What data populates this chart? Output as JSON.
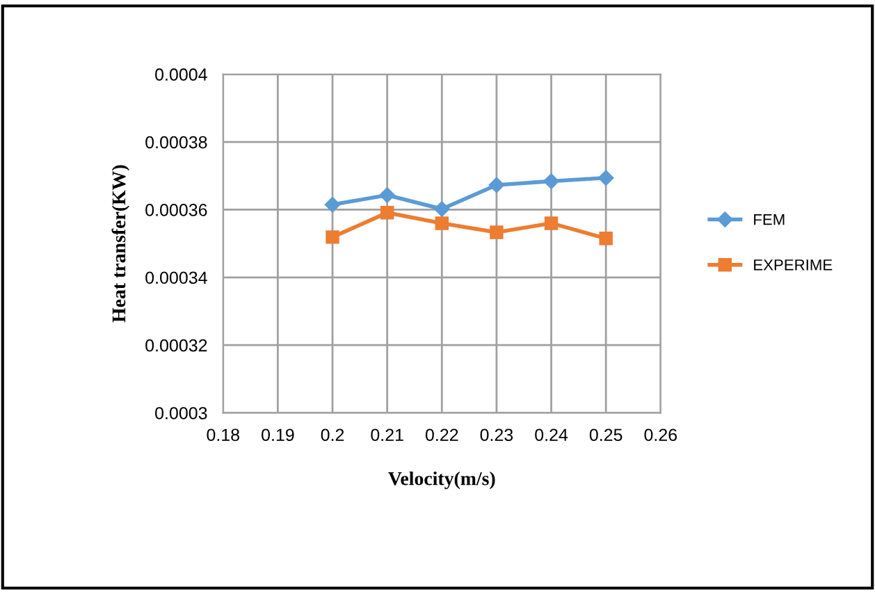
{
  "chart_data": {
    "type": "line",
    "xlabel": "Velocity(m/s)",
    "ylabel": "Heat transfer(KW)",
    "x": [
      0.2,
      0.21,
      0.22,
      0.23,
      0.24,
      0.25
    ],
    "series": [
      {
        "name": "FEM",
        "color": "#5b9bd5",
        "marker": "diamond",
        "values": [
          0.0003615,
          0.0003643,
          0.0003602,
          0.0003673,
          0.0003684,
          0.0003694
        ]
      },
      {
        "name": "EXPERIME",
        "color": "#ed7d31",
        "marker": "square",
        "values": [
          0.0003519,
          0.0003591,
          0.000356,
          0.0003533,
          0.000356,
          0.0003515
        ]
      }
    ],
    "xlim": [
      0.18,
      0.26
    ],
    "xticks": [
      0.18,
      0.19,
      0.2,
      0.21,
      0.22,
      0.23,
      0.24,
      0.25,
      0.26
    ],
    "ylim": [
      0.0003,
      0.0004
    ],
    "yticks": [
      0.0003,
      0.00032,
      0.00034,
      0.00036,
      0.00038,
      0.0004
    ],
    "grid": true,
    "legend": "right",
    "line_style": "solid"
  }
}
